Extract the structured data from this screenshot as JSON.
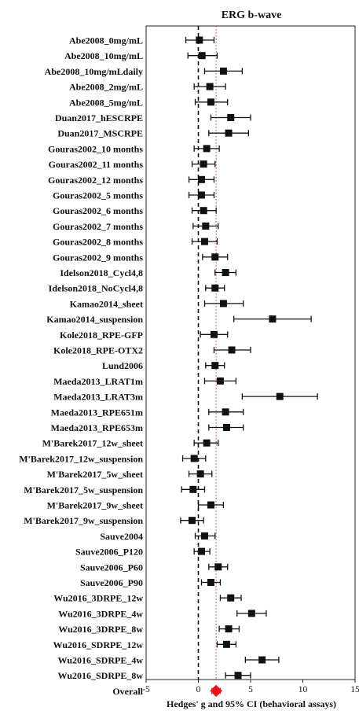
{
  "chart_data": {
    "type": "forest",
    "title": "ERG b-wave",
    "xlabel": "Hedges' g and 95% CI (behavioral assays)",
    "xlim": [
      -5,
      15
    ],
    "xticks": [
      "-5",
      "0",
      "5",
      "10",
      "15"
    ],
    "tick_values": [
      -5,
      0,
      5,
      10,
      15
    ],
    "reference_line": 0,
    "pooled_line": 1.7,
    "colors": {
      "study": "#111111",
      "overall": "#e8141c",
      "pooled_line": "#e8141c"
    },
    "studies": [
      {
        "label": "Abe2008_0mg/mL",
        "g": 0.1,
        "lo": -1.2,
        "hi": 1.5
      },
      {
        "label": "Abe2008_10mg/mL",
        "g": 0.35,
        "lo": -1.0,
        "hi": 1.8
      },
      {
        "label": "Abe2008_10mg/mLdaily",
        "g": 2.4,
        "lo": 0.6,
        "hi": 4.2
      },
      {
        "label": "Abe2008_2mg/mL",
        "g": 1.1,
        "lo": -0.4,
        "hi": 2.6
      },
      {
        "label": "Abe2008_5mg/mL",
        "g": 1.2,
        "lo": -0.3,
        "hi": 2.8
      },
      {
        "label": "Duan2017_hESCRPE",
        "g": 3.1,
        "lo": 1.2,
        "hi": 5.0
      },
      {
        "label": "Duan2017_MSCRPE",
        "g": 2.9,
        "lo": 1.0,
        "hi": 4.8
      },
      {
        "label": "Gouras2002_10 months",
        "g": 0.8,
        "lo": -0.4,
        "hi": 2.0
      },
      {
        "label": "Gouras2002_11 months",
        "g": 0.5,
        "lo": -0.6,
        "hi": 1.6
      },
      {
        "label": "Gouras2002_12 months",
        "g": 0.3,
        "lo": -0.9,
        "hi": 1.5
      },
      {
        "label": "Gouras2002_5 months",
        "g": 0.3,
        "lo": -0.9,
        "hi": 1.5
      },
      {
        "label": "Gouras2002_6 months",
        "g": 0.5,
        "lo": -0.6,
        "hi": 1.7
      },
      {
        "label": "Gouras2002_7 months",
        "g": 0.7,
        "lo": -0.5,
        "hi": 1.9
      },
      {
        "label": "Gouras2002_8 months",
        "g": 0.6,
        "lo": -0.6,
        "hi": 1.8
      },
      {
        "label": "Gouras2002_9 months",
        "g": 1.6,
        "lo": 0.4,
        "hi": 2.8
      },
      {
        "label": "Idelson2018_Cycl4,8",
        "g": 2.6,
        "lo": 1.6,
        "hi": 3.6
      },
      {
        "label": "Idelson2018_NoCycl4,8",
        "g": 1.6,
        "lo": 0.7,
        "hi": 2.5
      },
      {
        "label": "Kamao2014_sheet",
        "g": 2.4,
        "lo": 0.6,
        "hi": 4.3
      },
      {
        "label": "Kamao2014_suspension",
        "g": 7.1,
        "lo": 3.4,
        "hi": 10.8
      },
      {
        "label": "Kole2018_RPE-GFP",
        "g": 1.5,
        "lo": 0.2,
        "hi": 2.8
      },
      {
        "label": "Kole2018_RPE-OTX2",
        "g": 3.2,
        "lo": 1.5,
        "hi": 5.0
      },
      {
        "label": "Lund2006",
        "g": 1.6,
        "lo": 0.7,
        "hi": 2.5
      },
      {
        "label": "Maeda2013_LRAT1m",
        "g": 2.1,
        "lo": 0.6,
        "hi": 3.6
      },
      {
        "label": "Maeda2013_LRAT3m",
        "g": 7.8,
        "lo": 4.2,
        "hi": 11.4
      },
      {
        "label": "Maeda2013_RPE651m",
        "g": 2.6,
        "lo": 1.0,
        "hi": 4.3
      },
      {
        "label": "Maeda2013_RPE653m",
        "g": 2.7,
        "lo": 1.0,
        "hi": 4.3
      },
      {
        "label": "M'Barek2017_12w_sheet",
        "g": 0.8,
        "lo": -0.4,
        "hi": 1.9
      },
      {
        "label": "M'Barek2017_12w_suspension",
        "g": -0.4,
        "lo": -1.5,
        "hi": 0.7
      },
      {
        "label": "M'Barek2017_5w_sheet",
        "g": 0.2,
        "lo": -0.9,
        "hi": 1.3
      },
      {
        "label": "M'Barek2017_5w_suspension",
        "g": -0.5,
        "lo": -1.6,
        "hi": 0.6
      },
      {
        "label": "M'Barek2017_9w_sheet",
        "g": 1.2,
        "lo": 0.0,
        "hi": 2.4
      },
      {
        "label": "M'Barek2017_9w_suspension",
        "g": -0.6,
        "lo": -1.7,
        "hi": 0.5
      },
      {
        "label": "Sauve2004",
        "g": 0.6,
        "lo": -0.3,
        "hi": 1.6
      },
      {
        "label": "Sauve2006_P120",
        "g": 0.3,
        "lo": -0.4,
        "hi": 1.1
      },
      {
        "label": "Sauve2006_P60",
        "g": 1.9,
        "lo": 1.0,
        "hi": 2.8
      },
      {
        "label": "Sauve2006_P90",
        "g": 1.2,
        "lo": 0.3,
        "hi": 2.1
      },
      {
        "label": "Wu2016_3DRPE_12w",
        "g": 3.1,
        "lo": 2.1,
        "hi": 4.1
      },
      {
        "label": "Wu2016_3DRPE_4w",
        "g": 5.1,
        "lo": 3.7,
        "hi": 6.5
      },
      {
        "label": "Wu2016_3DRPE_8w",
        "g": 2.9,
        "lo": 2.0,
        "hi": 3.9
      },
      {
        "label": "Wu2016_SDRPE_12w",
        "g": 2.7,
        "lo": 1.8,
        "hi": 3.6
      },
      {
        "label": "Wu2016_SDRPE_4w",
        "g": 6.1,
        "lo": 4.5,
        "hi": 7.7
      },
      {
        "label": "Wu2016_SDRPE_8w",
        "g": 3.8,
        "lo": 2.6,
        "hi": 5.0
      }
    ],
    "overall": {
      "label": "Overall",
      "g": 1.7,
      "lo": 1.3,
      "hi": 2.1
    }
  }
}
